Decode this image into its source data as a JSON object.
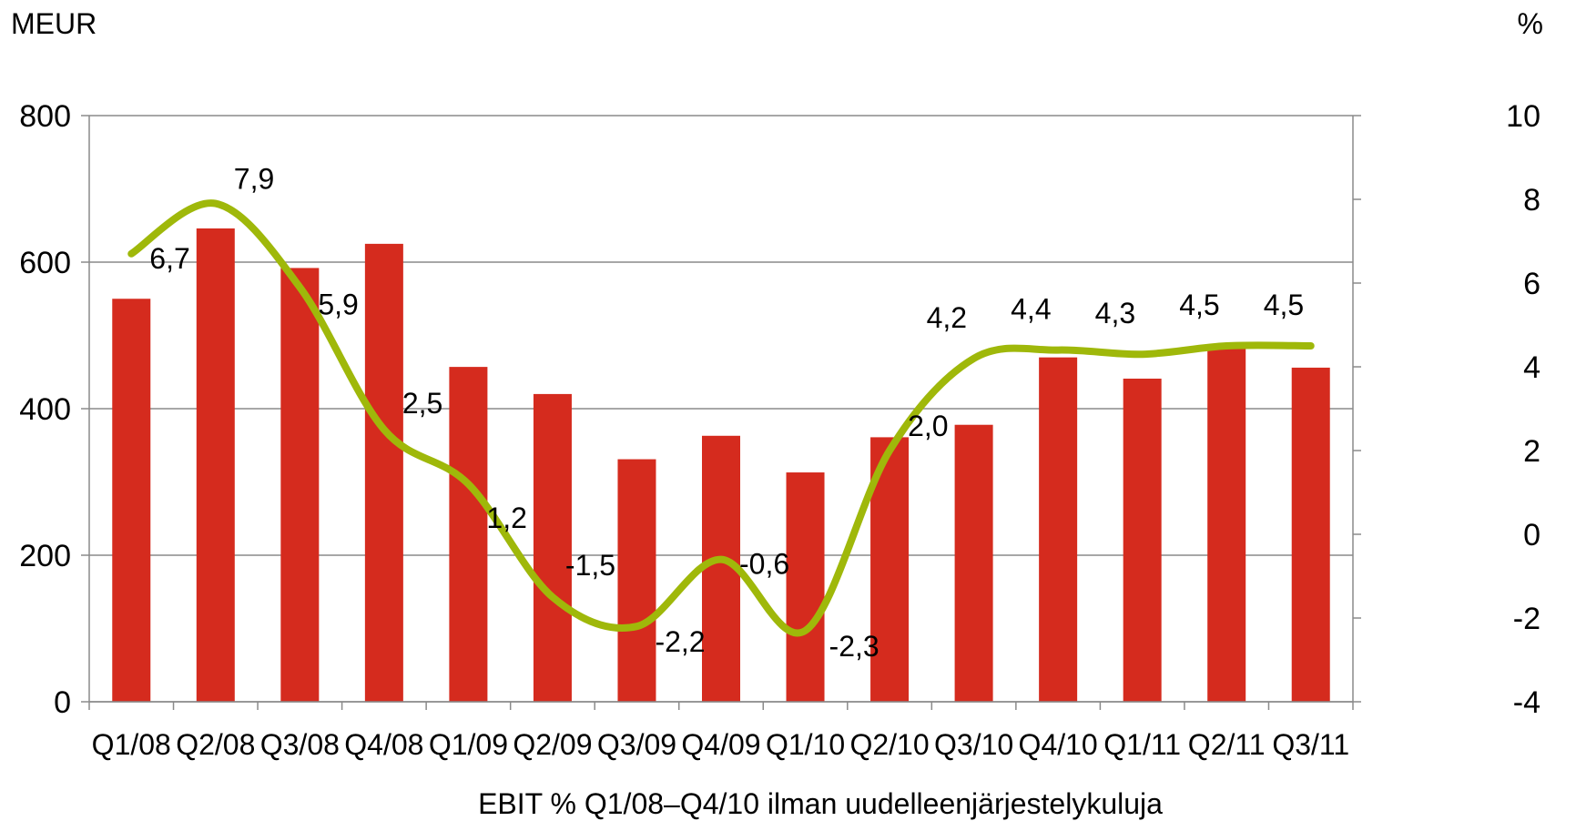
{
  "chart_data": {
    "type": "bar",
    "categories": [
      "Q1/08",
      "Q2/08",
      "Q3/08",
      "Q4/08",
      "Q1/09",
      "Q2/09",
      "Q3/09",
      "Q4/09",
      "Q1/10",
      "Q2/10",
      "Q3/10",
      "Q4/10",
      "Q1/11",
      "Q2/11",
      "Q3/11"
    ],
    "series": [
      {
        "type": "bar",
        "axis": "left",
        "color": "#d52b1e",
        "values": [
          550,
          646,
          592,
          625,
          457,
          420,
          331,
          363,
          313,
          361,
          378,
          470,
          441,
          483,
          456
        ]
      },
      {
        "type": "line",
        "axis": "right",
        "color": "#9fb80a",
        "smooth": true,
        "values": [
          6.7,
          7.9,
          5.9,
          2.5,
          1.2,
          -1.5,
          -2.2,
          -0.6,
          -2.3,
          2.0,
          4.2,
          4.4,
          4.3,
          4.5,
          4.5
        ],
        "labels": [
          "6,7",
          "7,9",
          "5,9",
          "2,5",
          "1,2",
          "-1,5",
          "-2,2",
          "-0,6",
          "-2,3",
          "2,0",
          "4,2",
          "4,4",
          "4,3",
          "4,5",
          "4,5"
        ]
      }
    ],
    "y_left": {
      "unit": "MEUR",
      "lim": [
        0,
        800
      ],
      "ticks": [
        "0",
        "200",
        "400",
        "600",
        "800"
      ]
    },
    "y_right": {
      "unit": "%",
      "lim": [
        -4,
        10
      ],
      "ticks": [
        "-4",
        "-2",
        "0",
        "2",
        "4",
        "6",
        "8",
        "10"
      ]
    },
    "grid": true,
    "caption": "EBIT % Q1/08–Q4/10 ilman uudelleenjärjestelykuluja"
  }
}
